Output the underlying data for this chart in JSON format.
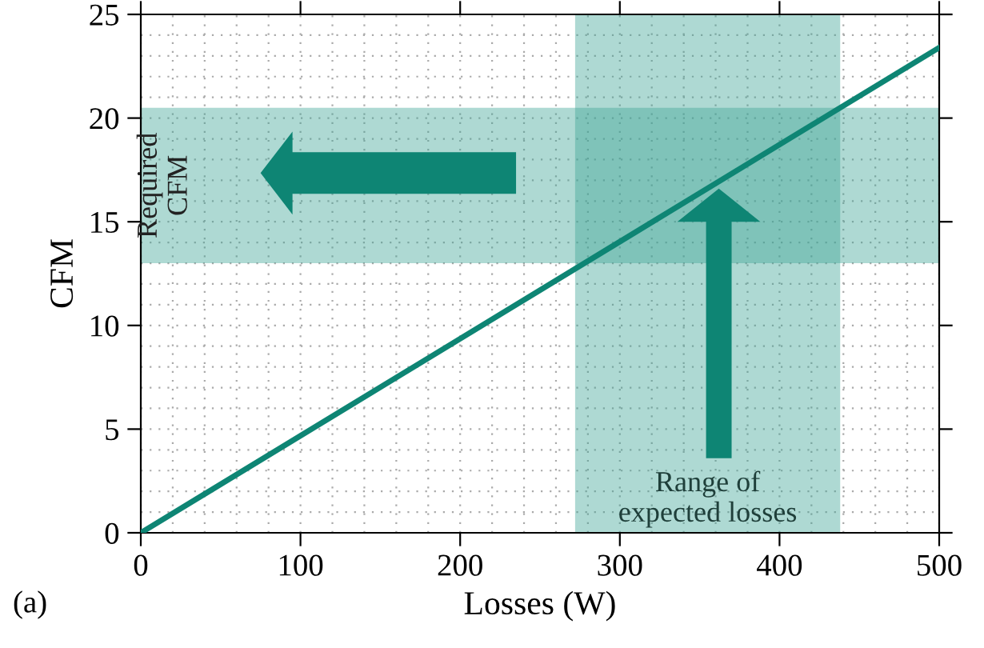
{
  "chart_data": {
    "type": "line",
    "xlabel": "Losses (W)",
    "ylabel": "CFM",
    "x": [
      0,
      500
    ],
    "series": [
      {
        "color": "#0e8574",
        "values": [
          0,
          23.4
        ]
      }
    ],
    "xlim": [
      0,
      500
    ],
    "xticks": [
      0,
      100,
      200,
      300,
      400,
      500
    ],
    "ylim": [
      0,
      25
    ],
    "yticks": [
      0,
      5,
      10,
      15,
      20,
      25
    ],
    "bands": [
      {
        "axis": "y",
        "from": 13,
        "to": 20.5,
        "label": "Required\nCFM",
        "color": "#3fa596"
      },
      {
        "axis": "x",
        "from": 272,
        "to": 438,
        "label": "Range of\nexpected losses",
        "color": "#3fa596"
      }
    ],
    "annotations": [
      "(a)"
    ],
    "grid": true,
    "line_style": "solid",
    "marker": "none"
  }
}
